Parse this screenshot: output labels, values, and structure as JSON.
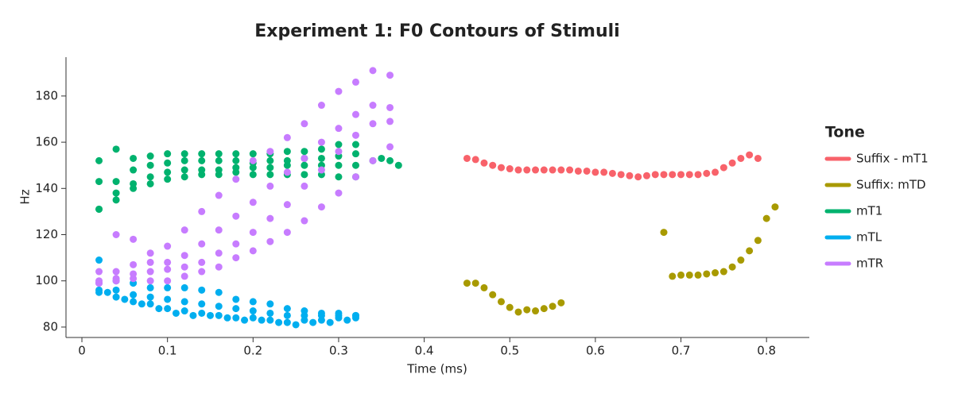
{
  "chart_data": {
    "type": "scatter",
    "title": "Experiment 1: F0 Contours of Stimuli",
    "xlabel": "Time (ms)",
    "ylabel": "Hz",
    "legend_title": "Tone",
    "legend": "right",
    "xlim": [
      -0.0186,
      0.85
    ],
    "ylim": [
      75.5,
      196.8
    ],
    "xticks": [
      0,
      0.1,
      0.2,
      0.3,
      0.4,
      0.5,
      0.6,
      0.7,
      0.8
    ],
    "yticks": [
      80,
      100,
      120,
      140,
      160,
      180
    ],
    "series": [
      {
        "name": "Suffix - mT1",
        "color": "#f8626a",
        "x": [
          0.45,
          0.46,
          0.47,
          0.48,
          0.49,
          0.5,
          0.51,
          0.52,
          0.53,
          0.54,
          0.55,
          0.56,
          0.57,
          0.58,
          0.59,
          0.6,
          0.61,
          0.62,
          0.63,
          0.64,
          0.65,
          0.66,
          0.67,
          0.68,
          0.69,
          0.7,
          0.71,
          0.72,
          0.73,
          0.74,
          0.75,
          0.76,
          0.77,
          0.78,
          0.79
        ],
        "values": [
          153,
          152.5,
          151,
          150,
          149,
          148.5,
          148,
          148,
          148,
          148,
          148,
          148,
          148,
          147.5,
          147.5,
          147,
          147,
          146.5,
          146,
          145.5,
          145,
          145.5,
          146,
          146,
          146,
          146,
          146,
          146,
          146.5,
          147,
          149,
          151,
          153,
          154.5,
          153
        ]
      },
      {
        "name": "Suffix: mTD",
        "color": "#a89a00",
        "x": [
          0.45,
          0.46,
          0.47,
          0.48,
          0.49,
          0.5,
          0.51,
          0.52,
          0.53,
          0.54,
          0.55,
          0.56,
          0.68,
          0.69,
          0.7,
          0.71,
          0.72,
          0.73,
          0.74,
          0.75,
          0.76,
          0.77,
          0.78,
          0.79,
          0.8,
          0.81
        ],
        "values": [
          99,
          99,
          97,
          94,
          91,
          88.5,
          86.5,
          87.5,
          87,
          88,
          89,
          90.5,
          121,
          102,
          102.5,
          102.5,
          102.5,
          103,
          103.5,
          104,
          106,
          109,
          113,
          117.5,
          127,
          132
        ]
      },
      {
        "name": "mT1",
        "color": "#00b26e",
        "x": [
          0.02,
          0.04,
          0.06,
          0.08,
          0.1,
          0.12,
          0.14,
          0.16,
          0.18,
          0.2,
          0.22,
          0.24,
          0.26,
          0.28,
          0.3,
          0.32,
          0.02,
          0.04,
          0.06,
          0.08,
          0.1,
          0.12,
          0.14,
          0.16,
          0.18,
          0.2,
          0.22,
          0.24,
          0.26,
          0.28,
          0.3,
          0.32,
          0.02,
          0.04,
          0.06,
          0.08,
          0.1,
          0.12,
          0.14,
          0.16,
          0.18,
          0.2,
          0.22,
          0.24,
          0.26,
          0.28,
          0.3,
          0.32,
          0.02,
          0.04,
          0.06,
          0.08,
          0.1,
          0.12,
          0.14,
          0.16,
          0.18,
          0.2,
          0.22,
          0.24,
          0.26,
          0.28,
          0.3,
          0.32,
          0.34,
          0.35,
          0.36,
          0.37
        ],
        "values": [
          152,
          157,
          153,
          154,
          155,
          155,
          155,
          155,
          155,
          155,
          155,
          156,
          156,
          157,
          159,
          159,
          143,
          143,
          148,
          150,
          151,
          152,
          152,
          152,
          152,
          151,
          152,
          152,
          153,
          153,
          154,
          155,
          131,
          138,
          142,
          145,
          147,
          148,
          148,
          148,
          149,
          149,
          149,
          150,
          150,
          150,
          150,
          150,
          131,
          135,
          140,
          142,
          144,
          145,
          146,
          146,
          147,
          146,
          146,
          146,
          146,
          146,
          145,
          145,
          152,
          153,
          152,
          150
        ]
      },
      {
        "name": "mTL",
        "color": "#00aeef",
        "x": [
          0.02,
          0.04,
          0.06,
          0.08,
          0.1,
          0.12,
          0.14,
          0.16,
          0.18,
          0.2,
          0.22,
          0.24,
          0.26,
          0.28,
          0.3,
          0.32,
          0.02,
          0.04,
          0.06,
          0.08,
          0.1,
          0.12,
          0.14,
          0.16,
          0.18,
          0.2,
          0.22,
          0.24,
          0.26,
          0.28,
          0.3,
          0.32,
          0.02,
          0.04,
          0.06,
          0.08,
          0.1,
          0.12,
          0.14,
          0.16,
          0.18,
          0.2,
          0.22,
          0.24,
          0.26,
          0.28,
          0.3,
          0.32,
          0.03,
          0.05,
          0.07,
          0.09,
          0.11,
          0.13,
          0.15,
          0.17,
          0.19,
          0.21,
          0.23,
          0.25,
          0.27,
          0.29,
          0.31
        ],
        "values": [
          109,
          100,
          99,
          97,
          97,
          97,
          96,
          95,
          92,
          91,
          90,
          88,
          87,
          86,
          86,
          85,
          96,
          96,
          94,
          93,
          92,
          91,
          90,
          89,
          88,
          87,
          86,
          85,
          85,
          85,
          85,
          85,
          95,
          93,
          91,
          90,
          88,
          87,
          86,
          85,
          84,
          84,
          83,
          82,
          83,
          83,
          84,
          84,
          95,
          92,
          90,
          88,
          86,
          85,
          85,
          84,
          83,
          83,
          82,
          81,
          82,
          82,
          83
        ]
      },
      {
        "name": "mTR",
        "color": "#c77cff",
        "x": [
          0.02,
          0.04,
          0.06,
          0.08,
          0.1,
          0.12,
          0.14,
          0.16,
          0.18,
          0.2,
          0.22,
          0.24,
          0.26,
          0.28,
          0.3,
          0.32,
          0.34,
          0.36,
          0.02,
          0.04,
          0.06,
          0.08,
          0.1,
          0.12,
          0.14,
          0.16,
          0.18,
          0.2,
          0.22,
          0.24,
          0.26,
          0.28,
          0.3,
          0.32,
          0.34,
          0.36,
          0.02,
          0.04,
          0.06,
          0.08,
          0.1,
          0.12,
          0.14,
          0.16,
          0.18,
          0.2,
          0.22,
          0.24,
          0.26,
          0.28,
          0.3,
          0.32,
          0.34,
          0.36,
          0.02,
          0.04,
          0.06,
          0.08,
          0.1,
          0.12,
          0.14,
          0.16,
          0.18,
          0.2,
          0.22,
          0.24,
          0.26,
          0.28,
          0.3,
          0.32,
          0.34,
          0.36
        ],
        "values": [
          104,
          120,
          118,
          112,
          115,
          122,
          130,
          137,
          144,
          152,
          156,
          162,
          168,
          176,
          182,
          186,
          191,
          189,
          100,
          104,
          107,
          108,
          108,
          111,
          116,
          122,
          128,
          134,
          141,
          147,
          153,
          160,
          166,
          172,
          176,
          175,
          99,
          101,
          103,
          104,
          105,
          106,
          108,
          112,
          116,
          121,
          127,
          133,
          141,
          148,
          156,
          163,
          168,
          169,
          99,
          100,
          101,
          100,
          100,
          102,
          104,
          106,
          110,
          113,
          117,
          121,
          126,
          132,
          138,
          145,
          152,
          158
        ]
      }
    ]
  }
}
